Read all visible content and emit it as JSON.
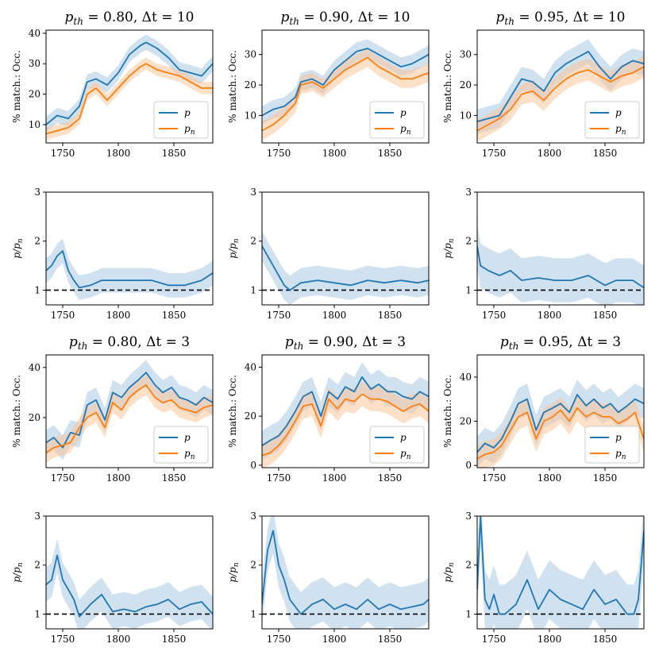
{
  "colors": {
    "p": "#1f77b4",
    "pn": "#ff7f0e",
    "band_p": "#a9c8e3",
    "band_pn": "#f9c79b",
    "ref": "#000000"
  },
  "chart_data": [
    {
      "type": "line",
      "title": "p_th = 0.80, Δt = 10",
      "title_main": "p",
      "title_sub": "th",
      "title_rest": " = 0.80, Δt = 10",
      "ylabel": "% match.: Occ.",
      "xlim": [
        1735,
        1885
      ],
      "ylim": [
        4,
        41
      ],
      "xticks": [
        1750,
        1800,
        1850
      ],
      "yticks": [
        10,
        20,
        30,
        40
      ],
      "legend": "lower right",
      "x": [
        1735,
        1745,
        1755,
        1765,
        1772,
        1780,
        1790,
        1800,
        1810,
        1820,
        1825,
        1835,
        1845,
        1855,
        1865,
        1875,
        1885
      ],
      "series": [
        {
          "name": "p",
          "values": [
            10,
            13,
            12,
            16,
            24,
            25,
            23,
            27,
            33,
            36,
            37,
            35,
            32,
            28,
            27,
            26,
            30
          ],
          "band": 2.5
        },
        {
          "name": "p_n",
          "values": [
            7,
            8,
            9,
            12,
            20,
            22,
            18,
            22,
            26,
            29,
            30,
            28,
            27,
            26,
            24,
            22,
            22
          ],
          "band": 2.0
        }
      ]
    },
    {
      "type": "line",
      "title": "p_th = 0.90, Δt = 10",
      "title_main": "p",
      "title_sub": "th",
      "title_rest": " = 0.90, Δt = 10",
      "ylabel": "% match.: Occ.",
      "xlim": [
        1735,
        1885
      ],
      "ylim": [
        1,
        38
      ],
      "xticks": [
        1750,
        1800,
        1850
      ],
      "yticks": [
        10,
        20,
        30
      ],
      "legend": "lower right",
      "x": [
        1735,
        1745,
        1755,
        1765,
        1770,
        1780,
        1790,
        1800,
        1810,
        1820,
        1830,
        1840,
        1850,
        1860,
        1870,
        1885
      ],
      "series": [
        {
          "name": "p",
          "values": [
            10,
            12,
            13,
            16,
            21,
            22,
            20,
            25,
            28,
            31,
            32,
            30,
            28,
            26,
            27,
            30
          ],
          "band": 3
        },
        {
          "name": "p_n",
          "values": [
            5,
            7,
            10,
            14,
            20,
            21,
            19,
            22,
            25,
            27,
            29,
            26,
            24,
            22,
            22,
            24
          ],
          "band": 3
        }
      ]
    },
    {
      "type": "line",
      "title": "p_th = 0.95, Δt = 10",
      "title_main": "p",
      "title_sub": "th",
      "title_rest": " = 0.95, Δt = 10",
      "ylabel": "% match.: Occ.",
      "xlim": [
        1735,
        1885
      ],
      "ylim": [
        1,
        38
      ],
      "xticks": [
        1750,
        1800,
        1850
      ],
      "yticks": [
        10,
        20,
        30
      ],
      "legend": "lower right",
      "x": [
        1735,
        1745,
        1755,
        1765,
        1775,
        1785,
        1795,
        1805,
        1815,
        1825,
        1835,
        1845,
        1855,
        1865,
        1875,
        1885
      ],
      "series": [
        {
          "name": "p",
          "values": [
            8,
            9,
            10,
            16,
            22,
            21,
            18,
            24,
            27,
            29,
            31,
            26,
            22,
            26,
            28,
            27
          ],
          "band": 4
        },
        {
          "name": "p_n",
          "values": [
            5,
            7,
            9,
            12,
            17,
            18,
            15,
            19,
            22,
            24,
            25,
            23,
            21,
            23,
            24,
            26
          ],
          "band": 3.5
        }
      ]
    },
    {
      "type": "line",
      "ylabel": "p/p_n",
      "ylabel_main": "p/p",
      "ylabel_sub": "n",
      "xlim": [
        1735,
        1885
      ],
      "ylim": [
        0.7,
        3
      ],
      "xticks": [
        1750,
        1800,
        1850
      ],
      "yticks": [
        1,
        2,
        3
      ],
      "ref_line": 1,
      "x": [
        1735,
        1740,
        1745,
        1750,
        1755,
        1760,
        1765,
        1775,
        1785,
        1800,
        1815,
        1830,
        1845,
        1860,
        1875,
        1885
      ],
      "series": [
        {
          "name": "p/p_n",
          "values": [
            1.4,
            1.5,
            1.7,
            1.8,
            1.4,
            1.2,
            1.05,
            1.1,
            1.2,
            1.2,
            1.2,
            1.2,
            1.1,
            1.1,
            1.2,
            1.35
          ],
          "band": 0.25
        }
      ]
    },
    {
      "type": "line",
      "ylabel": "p/p_n",
      "ylabel_main": "p/p",
      "ylabel_sub": "n",
      "xlim": [
        1735,
        1885
      ],
      "ylim": [
        0.7,
        3
      ],
      "xticks": [
        1750,
        1800,
        1850
      ],
      "yticks": [
        1,
        2,
        3
      ],
      "ref_line": 1,
      "x": [
        1735,
        1740,
        1745,
        1750,
        1755,
        1760,
        1770,
        1785,
        1800,
        1815,
        1830,
        1845,
        1860,
        1875,
        1885
      ],
      "series": [
        {
          "name": "p/p_n",
          "values": [
            1.9,
            1.7,
            1.5,
            1.3,
            1.1,
            1.0,
            1.15,
            1.2,
            1.15,
            1.1,
            1.2,
            1.15,
            1.2,
            1.15,
            1.2
          ],
          "band": 0.3
        }
      ]
    },
    {
      "type": "line",
      "ylabel": "p/p_n",
      "ylabel_main": "p/p",
      "ylabel_sub": "n",
      "xlim": [
        1735,
        1885
      ],
      "ylim": [
        0.7,
        3
      ],
      "xticks": [
        1750,
        1800,
        1850
      ],
      "yticks": [
        1,
        2,
        3
      ],
      "ref_line": 1,
      "x": [
        1735,
        1738,
        1745,
        1755,
        1765,
        1775,
        1790,
        1805,
        1820,
        1835,
        1850,
        1860,
        1875,
        1885
      ],
      "series": [
        {
          "name": "p/p_n",
          "values": [
            1.9,
            1.5,
            1.4,
            1.3,
            1.4,
            1.2,
            1.25,
            1.2,
            1.2,
            1.3,
            1.1,
            1.2,
            1.2,
            1.05
          ],
          "band": 0.45
        }
      ]
    },
    {
      "type": "line",
      "title": "p_th = 0.80, Δt = 3",
      "title_main": "p",
      "title_sub": "th",
      "title_rest": " = 0.80, Δt = 3",
      "ylabel": "% match.: Occ.",
      "xlim": [
        1735,
        1885
      ],
      "ylim": [
        0,
        45
      ],
      "xticks": [
        1750,
        1800,
        1850
      ],
      "yticks": [
        20,
        40
      ],
      "legend": "lower right",
      "x": [
        1735,
        1742,
        1750,
        1757,
        1765,
        1772,
        1780,
        1788,
        1795,
        1803,
        1810,
        1818,
        1825,
        1833,
        1840,
        1848,
        1855,
        1862,
        1870,
        1877,
        1885
      ],
      "series": [
        {
          "name": "p",
          "values": [
            10,
            12,
            8,
            14,
            13,
            25,
            27,
            19,
            30,
            28,
            32,
            35,
            38,
            33,
            30,
            32,
            28,
            27,
            25,
            28,
            26
          ],
          "band": 5
        },
        {
          "name": "p_n",
          "values": [
            6,
            8,
            9,
            10,
            16,
            20,
            22,
            16,
            26,
            23,
            28,
            31,
            33,
            28,
            26,
            27,
            24,
            23,
            22,
            24,
            25
          ],
          "band": 4
        }
      ]
    },
    {
      "type": "line",
      "title": "p_th = 0.90, Δt = 3",
      "title_main": "p",
      "title_sub": "th",
      "title_rest": " = 0.90, Δt = 3",
      "ylabel": "% match.: Occ.",
      "xlim": [
        1735,
        1885
      ],
      "ylim": [
        -1,
        45
      ],
      "xticks": [
        1750,
        1800,
        1850
      ],
      "yticks": [
        0,
        20,
        40
      ],
      "legend": "lower right",
      "x": [
        1735,
        1742,
        1750,
        1757,
        1765,
        1772,
        1780,
        1788,
        1795,
        1803,
        1810,
        1818,
        1825,
        1833,
        1840,
        1848,
        1855,
        1862,
        1870,
        1877,
        1885
      ],
      "series": [
        {
          "name": "p",
          "values": [
            8,
            10,
            12,
            16,
            22,
            28,
            30,
            20,
            30,
            27,
            32,
            30,
            36,
            31,
            33,
            30,
            30,
            28,
            27,
            30,
            28
          ],
          "band": 6
        },
        {
          "name": "p_n",
          "values": [
            4,
            5,
            8,
            12,
            18,
            24,
            25,
            16,
            27,
            23,
            27,
            26,
            29,
            27,
            27,
            26,
            24,
            22,
            24,
            25,
            22
          ],
          "band": 5
        }
      ]
    },
    {
      "type": "line",
      "title": "p_th = 0.95, Δt = 3",
      "title_main": "p",
      "title_sub": "th",
      "title_rest": " = 0.95, Δt = 3",
      "ylabel": "% match.: Occ.",
      "xlim": [
        1735,
        1885
      ],
      "ylim": [
        -1,
        50
      ],
      "xticks": [
        1750,
        1800,
        1850
      ],
      "yticks": [
        0,
        20,
        40
      ],
      "legend": "lower right",
      "x": [
        1735,
        1742,
        1750,
        1757,
        1765,
        1772,
        1780,
        1788,
        1795,
        1803,
        1810,
        1818,
        1825,
        1833,
        1840,
        1848,
        1855,
        1862,
        1870,
        1877,
        1885
      ],
      "series": [
        {
          "name": "p",
          "values": [
            6,
            10,
            8,
            12,
            20,
            28,
            30,
            16,
            24,
            26,
            28,
            24,
            32,
            27,
            30,
            26,
            28,
            24,
            27,
            30,
            28
          ],
          "band": 7
        },
        {
          "name": "p_n",
          "values": [
            3,
            5,
            6,
            9,
            16,
            22,
            24,
            12,
            20,
            22,
            25,
            20,
            26,
            22,
            24,
            22,
            22,
            19,
            21,
            24,
            12
          ],
          "band": 6
        }
      ]
    },
    {
      "type": "line",
      "ylabel": "p/p_n",
      "ylabel_main": "p/p",
      "ylabel_sub": "n",
      "xlim": [
        1735,
        1885
      ],
      "ylim": [
        0.7,
        3
      ],
      "xticks": [
        1750,
        1800,
        1850
      ],
      "yticks": [
        1,
        2,
        3
      ],
      "ref_line": 1,
      "x": [
        1735,
        1740,
        1745,
        1750,
        1755,
        1760,
        1765,
        1775,
        1785,
        1795,
        1805,
        1815,
        1825,
        1835,
        1845,
        1855,
        1865,
        1875,
        1885
      ],
      "series": [
        {
          "name": "p/p_n",
          "values": [
            1.6,
            1.7,
            2.2,
            1.7,
            1.5,
            1.3,
            0.95,
            1.2,
            1.4,
            1.05,
            1.1,
            1.05,
            1.15,
            1.2,
            1.3,
            1.1,
            1.2,
            1.25,
            1.0
          ],
          "band": 0.35
        }
      ]
    },
    {
      "type": "line",
      "ylabel": "p/p_n",
      "ylabel_main": "p/p",
      "ylabel_sub": "n",
      "xlim": [
        1735,
        1885
      ],
      "ylim": [
        0.7,
        3
      ],
      "xticks": [
        1750,
        1800,
        1850
      ],
      "yticks": [
        1,
        2,
        3
      ],
      "ref_line": 1,
      "x": [
        1735,
        1740,
        1745,
        1750,
        1755,
        1760,
        1770,
        1780,
        1790,
        1800,
        1810,
        1820,
        1830,
        1840,
        1850,
        1860,
        1870,
        1880,
        1885
      ],
      "series": [
        {
          "name": "p/p_n",
          "values": [
            1.2,
            2.3,
            2.7,
            2.0,
            1.7,
            1.3,
            1.0,
            1.2,
            1.3,
            1.1,
            1.2,
            1.1,
            1.3,
            1.1,
            1.2,
            1.1,
            1.15,
            1.2,
            1.3
          ],
          "band": 0.45
        }
      ]
    },
    {
      "type": "line",
      "ylabel": "p/p_n",
      "ylabel_main": "p/p",
      "ylabel_sub": "n",
      "xlim": [
        1735,
        1885
      ],
      "ylim": [
        0.7,
        3
      ],
      "xticks": [
        1750,
        1800,
        1850
      ],
      "yticks": [
        1,
        2,
        3
      ],
      "ref_line": 1,
      "x": [
        1735,
        1738,
        1742,
        1746,
        1750,
        1755,
        1760,
        1770,
        1780,
        1790,
        1800,
        1810,
        1820,
        1830,
        1840,
        1850,
        1860,
        1870,
        1876,
        1880,
        1885
      ],
      "series": [
        {
          "name": "p/p_n",
          "values": [
            1.5,
            3.0,
            1.3,
            1.1,
            1.4,
            1.0,
            1.0,
            1.2,
            1.7,
            1.1,
            1.5,
            1.3,
            1.2,
            1.1,
            1.5,
            1.2,
            1.3,
            1.0,
            1.0,
            1.3,
            2.7
          ],
          "band": 0.6
        }
      ]
    }
  ]
}
